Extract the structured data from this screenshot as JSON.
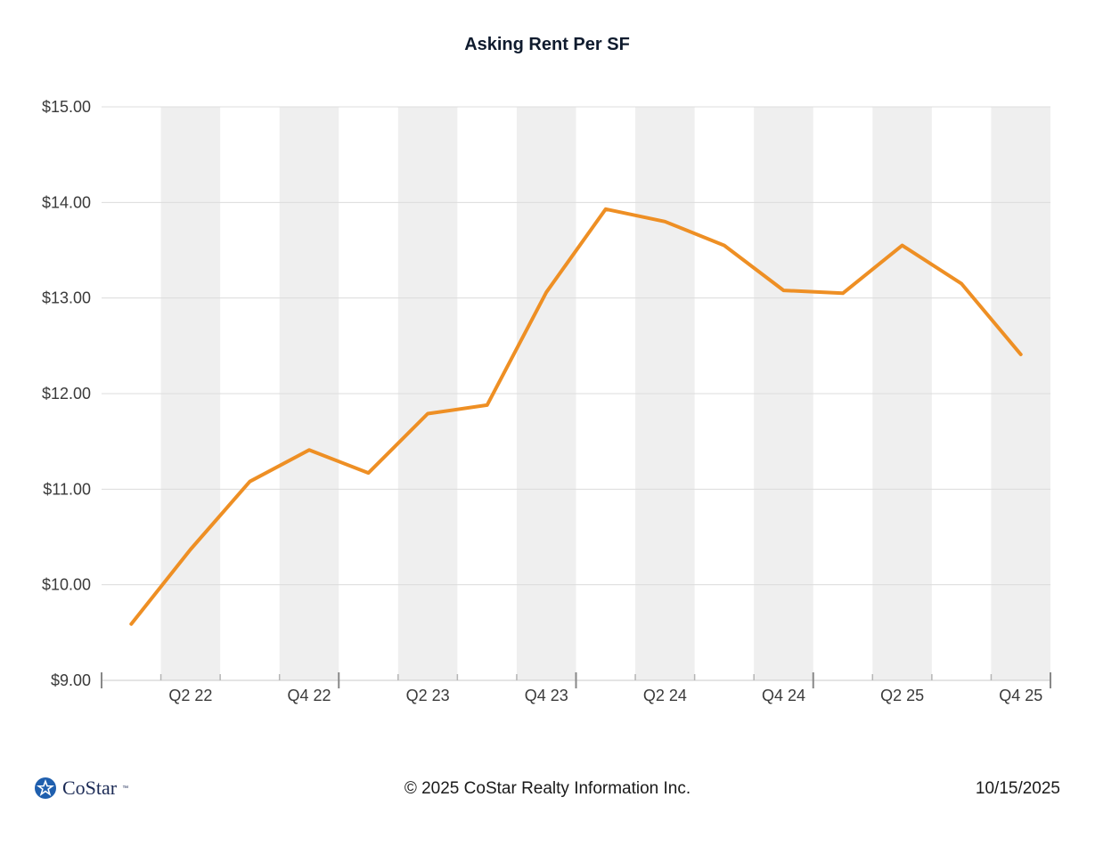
{
  "chart_data": {
    "type": "line",
    "title": "Asking Rent Per SF",
    "xlabel": "",
    "ylabel": "",
    "x": [
      "Q1 22",
      "Q2 22",
      "Q3 22",
      "Q4 22",
      "Q1 23",
      "Q2 23",
      "Q3 23",
      "Q4 23",
      "Q1 24",
      "Q2 24",
      "Q3 24",
      "Q4 24",
      "Q1 25",
      "Q2 25",
      "Q3 25",
      "Q4 25"
    ],
    "x_tick_labels": [
      "Q2 22",
      "Q4 22",
      "Q2 23",
      "Q4 23",
      "Q2 24",
      "Q4 24",
      "Q2 25",
      "Q4 25"
    ],
    "series": [
      {
        "values": [
          9.59,
          10.37,
          11.08,
          11.41,
          11.17,
          11.79,
          11.88,
          13.06,
          13.93,
          13.8,
          13.55,
          13.08,
          13.05,
          13.55,
          13.15,
          12.41
        ]
      }
    ],
    "ylim": [
      9,
      15
    ],
    "y_ticks": [
      "$9.00",
      "$10.00",
      "$11.00",
      "$12.00",
      "$13.00",
      "$14.00",
      "$15.00"
    ],
    "y_tick_values": [
      9,
      10,
      11,
      12,
      13,
      14,
      15
    ],
    "grid": true,
    "colors": {
      "line": "#ee8f24",
      "band": "#efefef",
      "grid": "#dcdcdc",
      "axis": "#888888"
    }
  },
  "footer": {
    "logo_text": "CoStar",
    "logo_tm": "™",
    "copyright": "© 2025 CoStar Realty Information Inc.",
    "date": "10/15/2025"
  }
}
